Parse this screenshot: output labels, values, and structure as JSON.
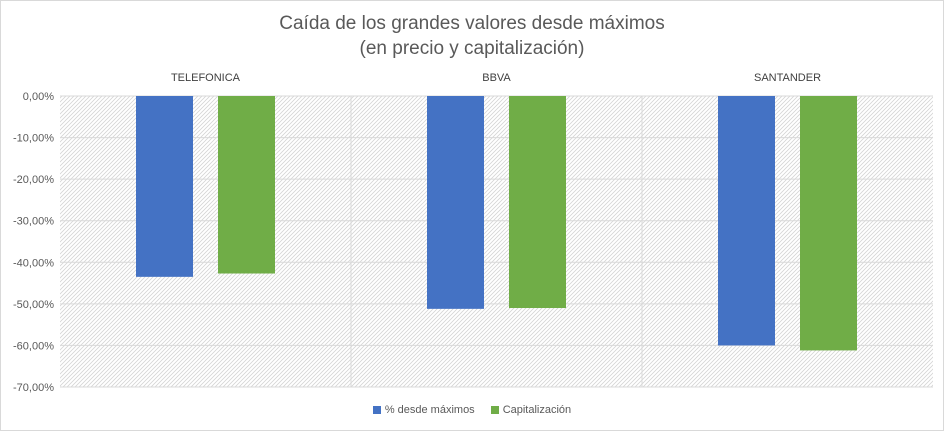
{
  "chart_data": {
    "type": "bar",
    "title": "Caída de los grandes valores desde máximos",
    "subtitle": "(en precio y capitalización)",
    "categories": [
      "TELEFONICA",
      "BBVA",
      "SANTANDER"
    ],
    "series": [
      {
        "name": "% desde máximos",
        "values": [
          -43.5,
          -51.2,
          -60.0
        ],
        "color": "#4472c4"
      },
      {
        "name": "Capitalización",
        "values": [
          -42.7,
          -51.0,
          -61.2
        ],
        "color": "#70ad47"
      }
    ],
    "ylim": [
      -70,
      0
    ],
    "yticks": [
      0,
      -10,
      -20,
      -30,
      -40,
      -50,
      -60,
      -70
    ],
    "ytick_labels": [
      "0,00%",
      "-10,00%",
      "-20,00%",
      "-30,00%",
      "-40,00%",
      "-50,00%",
      "-60,00%",
      "-70,00%"
    ],
    "grid": true,
    "legend_position": "bottom",
    "category_labels_position": "top"
  }
}
